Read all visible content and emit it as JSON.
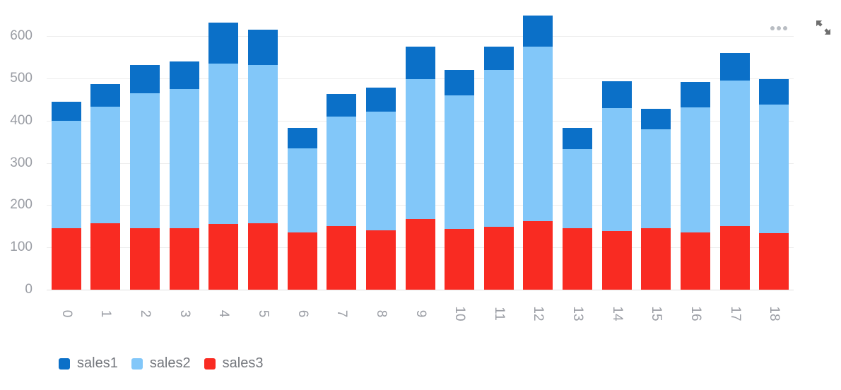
{
  "chart_data": {
    "type": "bar",
    "stacked": true,
    "title": "",
    "xlabel": "",
    "ylabel": "",
    "categories": [
      "0",
      "1",
      "2",
      "3",
      "4",
      "5",
      "6",
      "7",
      "8",
      "9",
      "10",
      "11",
      "12",
      "13",
      "14",
      "15",
      "16",
      "17",
      "18"
    ],
    "series": [
      {
        "name": "sales1",
        "color": "#0b70c8",
        "values": [
          45,
          54,
          66,
          65,
          97,
          84,
          48,
          53,
          56,
          77,
          60,
          55,
          73,
          50,
          64,
          48,
          60,
          65,
          61
        ]
      },
      {
        "name": "sales2",
        "color": "#82c7f9",
        "values": [
          255,
          276,
          319,
          329,
          380,
          375,
          200,
          260,
          282,
          330,
          316,
          372,
          413,
          188,
          292,
          234,
          296,
          344,
          305
        ]
      },
      {
        "name": "sales3",
        "color": "#f92b22",
        "values": [
          145,
          157,
          146,
          146,
          155,
          157,
          135,
          150,
          140,
          168,
          144,
          148,
          162,
          145,
          138,
          146,
          136,
          151,
          133
        ]
      }
    ],
    "stack_order_bottom_to_top": [
      "sales3",
      "sales2",
      "sales1"
    ],
    "yticks": [
      0,
      100,
      200,
      300,
      400,
      500,
      600
    ],
    "ylim": [
      0,
      660
    ],
    "x_label_rotation_deg": 90,
    "grid": true,
    "legend_position": "bottom-left",
    "axis_text_color": "#9a9da4",
    "legend_text_color": "#75787e"
  },
  "toolbar": {
    "more_menu_icon": "ellipsis-menu",
    "expand_icon": "resize-diagonal-arrows",
    "icon_color": "#6e6e6e"
  }
}
